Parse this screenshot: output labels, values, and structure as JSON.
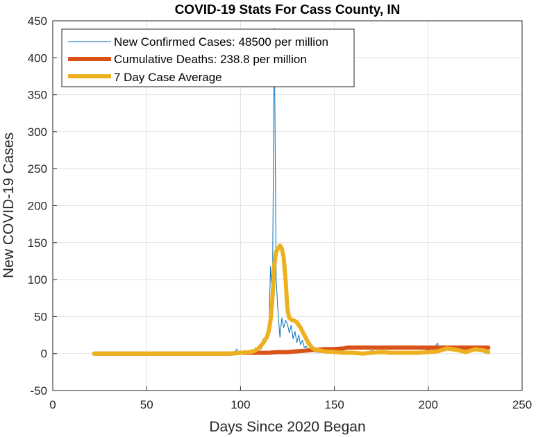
{
  "chart_data": {
    "type": "line",
    "title": "COVID-19 Stats For Cass County, IN",
    "xlabel": "Days Since 2020 Began",
    "ylabel": "New COVID-19 Cases",
    "xlim": [
      0,
      250
    ],
    "ylim": [
      -50,
      450
    ],
    "xticks": [
      0,
      50,
      100,
      150,
      200,
      250
    ],
    "yticks": [
      -50,
      0,
      50,
      100,
      150,
      200,
      250,
      300,
      350,
      400,
      450
    ],
    "grid": true,
    "legend_position": "top-left",
    "series": [
      {
        "name": "New Confirmed Cases: 48500 per million",
        "color": "#0072BD",
        "line_width": "thin",
        "x": [
          22,
          30,
          40,
          50,
          60,
          70,
          80,
          90,
          95,
          97,
          98,
          99,
          100,
          101,
          102,
          103,
          104,
          105,
          106,
          107,
          108,
          109,
          110,
          111,
          112,
          113,
          114,
          115,
          116,
          117,
          118,
          119,
          120,
          121,
          122,
          123,
          124,
          125,
          126,
          127,
          128,
          129,
          130,
          131,
          132,
          133,
          134,
          135,
          136,
          137,
          138,
          139,
          140,
          145,
          150,
          155,
          160,
          165,
          170,
          175,
          180,
          185,
          190,
          195,
          200,
          203,
          205,
          206,
          208,
          210,
          212,
          215,
          218,
          220,
          222,
          225,
          228,
          230,
          232
        ],
        "y": [
          0,
          0,
          0,
          0,
          0,
          0,
          0,
          0,
          0,
          2,
          6,
          1,
          3,
          0,
          4,
          2,
          3,
          1,
          5,
          2,
          8,
          4,
          12,
          6,
          20,
          15,
          30,
          25,
          118,
          70,
          440,
          100,
          55,
          22,
          48,
          35,
          45,
          40,
          28,
          38,
          20,
          30,
          15,
          25,
          12,
          18,
          8,
          10,
          5,
          6,
          3,
          4,
          2,
          1,
          0,
          2,
          0,
          1,
          4,
          2,
          1,
          3,
          0,
          2,
          5,
          8,
          14,
          5,
          7,
          10,
          4,
          8,
          3,
          6,
          2,
          9,
          4,
          1,
          0
        ]
      },
      {
        "name": "Cumulative Deaths: 238.8 per million",
        "color": "#D95319",
        "line_width": "thick",
        "x": [
          22,
          95,
          100,
          105,
          110,
          115,
          120,
          125,
          130,
          135,
          140,
          145,
          150,
          155,
          157,
          160,
          170,
          180,
          190,
          200,
          210,
          220,
          232
        ],
        "y": [
          0,
          0,
          1,
          1,
          1,
          1,
          2,
          2,
          3,
          4,
          5,
          6,
          6,
          7,
          8,
          8,
          8,
          8,
          8,
          8,
          8,
          8,
          8
        ]
      },
      {
        "name": "7 Day Case Average",
        "color": "#EDB120",
        "line_width": "thick",
        "x": [
          22,
          40,
          60,
          80,
          90,
          95,
          100,
          105,
          108,
          110,
          112,
          114,
          115,
          116,
          117,
          118,
          119,
          120,
          121,
          122,
          123,
          124,
          125,
          126,
          127,
          128,
          129,
          130,
          132,
          134,
          136,
          138,
          140,
          145,
          150,
          155,
          160,
          165,
          170,
          175,
          180,
          185,
          190,
          195,
          200,
          205,
          210,
          215,
          220,
          225,
          230,
          232
        ],
        "y": [
          0,
          0,
          0,
          0,
          0,
          0,
          1,
          2,
          4,
          8,
          14,
          22,
          30,
          45,
          75,
          120,
          138,
          142,
          146,
          142,
          130,
          100,
          60,
          48,
          46,
          45,
          44,
          42,
          35,
          25,
          15,
          8,
          5,
          3,
          2,
          1,
          1,
          0,
          1,
          2,
          1,
          1,
          1,
          1,
          2,
          3,
          7,
          5,
          2,
          6,
          4,
          2
        ]
      }
    ]
  }
}
